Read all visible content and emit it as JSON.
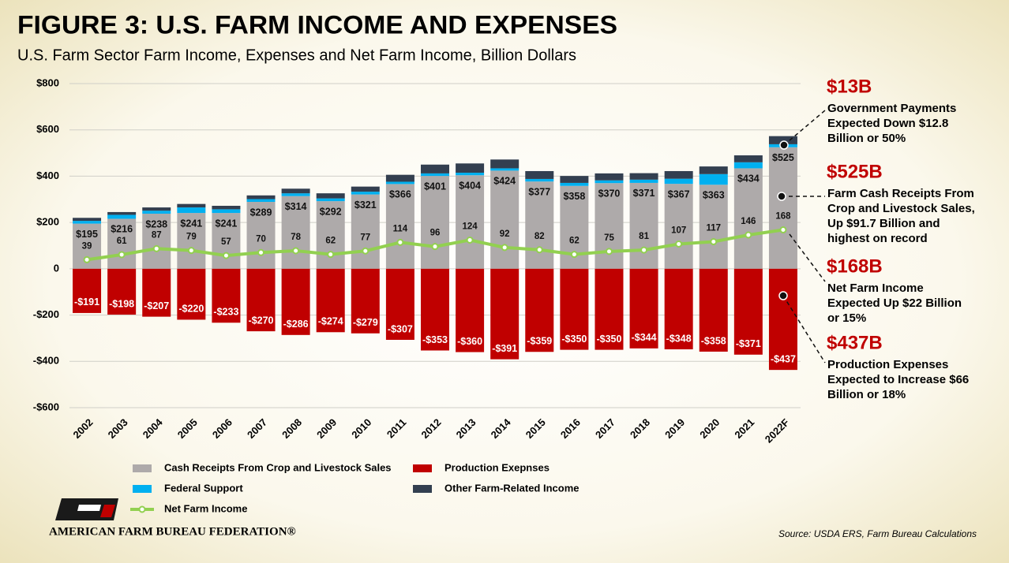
{
  "chart_data": {
    "type": "stacked-bar-line",
    "title": "FIGURE 3: U.S. FARM INCOME AND EXPENSES",
    "subtitle": "U.S. Farm Sector Farm Income, Expenses and Net Farm Income, Billion Dollars",
    "categories": [
      "2002",
      "2003",
      "2004",
      "2005",
      "2006",
      "2007",
      "2008",
      "2009",
      "2010",
      "2011",
      "2012",
      "2013",
      "2014",
      "2015",
      "2016",
      "2017",
      "2018",
      "2019",
      "2020",
      "2021",
      "2022F"
    ],
    "ylim": [
      -600,
      800
    ],
    "yticks": [
      {
        "value": -600,
        "label": "-$600"
      },
      {
        "value": -400,
        "label": "-$400"
      },
      {
        "value": -200,
        "label": "-$200"
      },
      0,
      {
        "value": 200,
        "label": "$200"
      },
      {
        "value": 400,
        "label": "$400"
      },
      {
        "value": 600,
        "label": "$600"
      },
      {
        "value": 800,
        "label": "$800"
      }
    ],
    "grid": true,
    "series": [
      {
        "name": "Cash Receipts From Crop and Livestock Sales",
        "color": "#aeaaaa",
        "kind": "bar",
        "values": [
          195,
          216,
          238,
          241,
          241,
          289,
          314,
          292,
          321,
          366,
          401,
          404,
          424,
          377,
          358,
          370,
          371,
          367,
          363,
          434,
          525
        ],
        "value_labels": [
          "$195",
          "$216",
          "$238",
          "$241",
          "$241",
          "$289",
          "$314",
          "$292",
          "$321",
          "$366",
          "$401",
          "$404",
          "$424",
          "$377",
          "$358",
          "$370",
          "$371",
          "$367",
          "$363",
          "$434",
          "$525"
        ]
      },
      {
        "name": "Production Exepnses",
        "color": "#c00000",
        "kind": "bar",
        "values": [
          -191,
          -198,
          -207,
          -220,
          -233,
          -270,
          -286,
          -274,
          -279,
          -307,
          -353,
          -360,
          -391,
          -359,
          -350,
          -350,
          -344,
          -348,
          -358,
          -371,
          -437
        ],
        "value_labels": [
          "-$191",
          "-$198",
          "-$207",
          "-$220",
          "-$233",
          "-$270",
          "-$286",
          "-$274",
          "-$279",
          "-$307",
          "-$353",
          "-$360",
          "-$391",
          "-$359",
          "-$350",
          "-$350",
          "-$344",
          "-$348",
          "-$358",
          "-$371",
          "-$437"
        ]
      },
      {
        "name": "Federal Support",
        "color": "#00b0f0",
        "kind": "bar",
        "values": [
          12,
          17,
          13,
          24,
          16,
          12,
          12,
          12,
          12,
          10,
          11,
          11,
          10,
          11,
          13,
          12,
          14,
          22,
          46,
          26,
          13
        ]
      },
      {
        "name": "Other Farm-Related Income",
        "color": "#333f50",
        "kind": "bar",
        "values": [
          13,
          12,
          14,
          15,
          15,
          16,
          20,
          22,
          22,
          30,
          38,
          40,
          38,
          34,
          30,
          30,
          28,
          33,
          33,
          30,
          35
        ]
      },
      {
        "name": "Net Farm Income",
        "color": "#92d050",
        "kind": "line",
        "values": [
          39,
          61,
          87,
          79,
          57,
          70,
          78,
          62,
          77,
          114,
          96,
          124,
          92,
          82,
          62,
          75,
          81,
          107,
          117,
          146,
          168
        ]
      }
    ],
    "annotations": [
      {
        "headline": "$13B",
        "lines": [
          "Government Payments",
          "Expected Down $12.8",
          "Billion or 50%"
        ]
      },
      {
        "headline": "$525B",
        "lines": [
          "Farm Cash Receipts From",
          "Crop and Livestock Sales,",
          "Up  $91.7 Billion and",
          "highest on record"
        ]
      },
      {
        "headline": "$168B",
        "lines": [
          "Net Farm Income",
          "Expected Up $22 Billion",
          "or 15%"
        ]
      },
      {
        "headline": "$437B",
        "lines": [
          "Production Expenses",
          "Expected to Increase $66",
          "Billion or 18%"
        ]
      }
    ]
  },
  "footer": {
    "source": "Source: USDA ERS, Farm Bureau Calculations",
    "organization": "AMERICAN FARM BUREAU FEDERATION®"
  }
}
